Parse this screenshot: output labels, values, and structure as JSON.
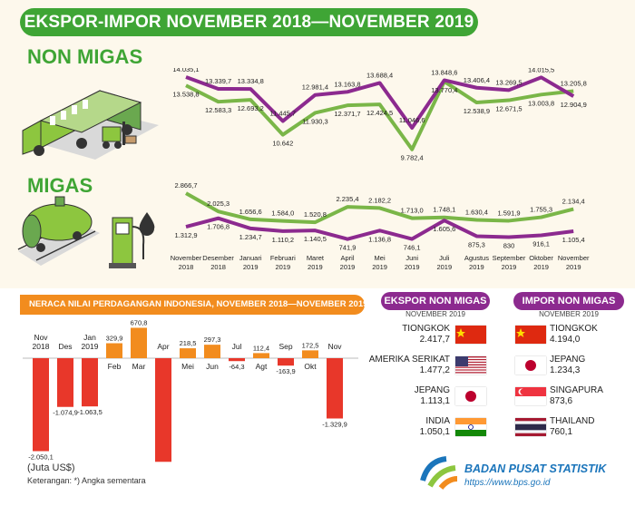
{
  "title": "EKSPOR-IMPOR NOVEMBER 2018—NOVEMBER 2019",
  "sections": {
    "non_migas": "NON MIGAS",
    "migas": "MIGAS"
  },
  "colors": {
    "ekspor": "#7ab648",
    "impor": "#8c2a8f",
    "neraca_pos": "#f28c1e",
    "neraca_neg": "#e8372a",
    "title_green": "#3fa535"
  },
  "icons": [
    "truck-icon",
    "forklift-icon",
    "tank-wagon-icon",
    "fuel-pump-icon",
    "oil-drop-icon",
    "bps-logo-icon"
  ],
  "neraca_title": "NERACA NILAI PERDAGANGAN INDONESIA, NOVEMBER 2018—NOVEMBER 2019",
  "unit_note": "(Juta US$)",
  "footnote": "Keterangan: *) Angka sementara",
  "ekspor_top": {
    "title": "EKSPOR NON MIGAS",
    "period": "NOVEMBER 2019",
    "items": [
      {
        "country": "TIONGKOK",
        "value": "2.417,7",
        "flag": "china"
      },
      {
        "country": "AMERIKA SERIKAT",
        "value": "1.477,2",
        "flag": "usa"
      },
      {
        "country": "JEPANG",
        "value": "1.113,1",
        "flag": "japan"
      },
      {
        "country": "INDIA",
        "value": "1.050,1",
        "flag": "india"
      }
    ]
  },
  "impor_top": {
    "title": "IMPOR NON MIGAS",
    "period": "NOVEMBER 2019",
    "items": [
      {
        "country": "TIONGKOK",
        "value": "4.194,0",
        "flag": "china"
      },
      {
        "country": "JEPANG",
        "value": "1.234,3",
        "flag": "japan"
      },
      {
        "country": "SINGAPURA",
        "value": "873,6",
        "flag": "singapore"
      },
      {
        "country": "THAILAND",
        "value": "760,1",
        "flag": "thailand"
      }
    ]
  },
  "bps": {
    "name": "BADAN PUSAT STATISTIK",
    "url": "https://www.bps.go.id"
  },
  "chart_data": [
    {
      "type": "line",
      "title": "NON MIGAS",
      "x": [
        [
          "November",
          "2018"
        ],
        [
          "Desember",
          "2018"
        ],
        [
          "Januari",
          "2019"
        ],
        [
          "Februari",
          "2019"
        ],
        [
          "Maret",
          "2019"
        ],
        [
          "April",
          "2019"
        ],
        [
          "Mei",
          "2019"
        ],
        [
          "Juni",
          "2019"
        ],
        [
          "Juli",
          "2019"
        ],
        [
          "Agustus",
          "2019"
        ],
        [
          "September",
          "2019"
        ],
        [
          "Oktober",
          "2019"
        ],
        [
          "November",
          "2019"
        ]
      ],
      "series": [
        {
          "color": "#7ab648",
          "values": [
            13538.8,
            12583.3,
            12693.2,
            10642,
            11930.3,
            12371.7,
            12424.5,
            9782.4,
            13770.4,
            12538.9,
            12671.5,
            13003.8,
            13205.8
          ],
          "labels": [
            "13.538,8",
            "12.583,3",
            "12.693,2",
            "10.642",
            "11.930,3",
            "12.371,7",
            "12.424,5",
            "9.782,4",
            "13.770,4",
            "12.538,9",
            "12.671,5",
            "13.003,8",
            "13.205,8"
          ]
        },
        {
          "color": "#8c2a8f",
          "values": [
            14035.1,
            13339.7,
            13334.8,
            11445.7,
            12981.4,
            13163.8,
            13688.4,
            11046.6,
            13848.6,
            13406.4,
            13269.5,
            14015.5,
            12904.9
          ],
          "labels": [
            "14.035,1",
            "13.339,7",
            "13.334,8",
            "11.445,7",
            "12.981,4",
            "13.163,8",
            "13.688,4",
            "11.046,6",
            "13.848,6",
            "13.406,4",
            "13.269,5",
            "14.015,5",
            "12.904,9"
          ]
        }
      ]
    },
    {
      "type": "line",
      "title": "MIGAS",
      "x": [
        [
          "November",
          "2018"
        ],
        [
          "Desember",
          "2018"
        ],
        [
          "Januari",
          "2019"
        ],
        [
          "Februari",
          "2019"
        ],
        [
          "Maret",
          "2019"
        ],
        [
          "April",
          "2019"
        ],
        [
          "Mei",
          "2019"
        ],
        [
          "Juni",
          "2019"
        ],
        [
          "Juli",
          "2019"
        ],
        [
          "Agustus",
          "2019"
        ],
        [
          "September",
          "2019"
        ],
        [
          "Oktober",
          "2019"
        ],
        [
          "November",
          "2019"
        ]
      ],
      "series": [
        {
          "color": "#7ab648",
          "values": [
            2866.7,
            2025.3,
            1656.6,
            1584.0,
            1520.8,
            2235.4,
            2182.2,
            1713.0,
            1748.1,
            1630.4,
            1591.9,
            1755.3,
            2134.4
          ],
          "labels": [
            "2.866,7",
            "2.025,3",
            "1.656,6",
            "1.584,0",
            "1.520,8",
            "2.235,4",
            "2.182,2",
            "1.713,0",
            "1.748,1",
            "1.630,4",
            "1.591,9",
            "1.755,3",
            "2.134,4"
          ]
        },
        {
          "color": "#8c2a8f",
          "values": [
            1312.9,
            1706.8,
            1234.7,
            1110.2,
            1140.5,
            741.9,
            1136.8,
            746.1,
            1605.6,
            875.3,
            830,
            916.1,
            1105.4
          ],
          "labels": [
            "1.312,9",
            "1.706,8",
            "1.234,7",
            "1.110,2",
            "1.140,5",
            "741,9",
            "1.136,8",
            "746,1",
            "1.605,6",
            "875,3",
            "830",
            "916,1",
            "1.105,4"
          ]
        }
      ]
    },
    {
      "type": "bar",
      "title": "NERACA NILAI PERDAGANGAN INDONESIA, NOVEMBER 2018—NOVEMBER 2019",
      "ylabel": "(Juta US$)",
      "categories": [
        [
          "Nov",
          "2018"
        ],
        [
          "Des"
        ],
        [
          "Jan",
          "2019"
        ],
        [
          "Feb"
        ],
        [
          "Mar"
        ],
        [
          "Apr"
        ],
        [
          "Mei"
        ],
        [
          "Jun"
        ],
        [
          "Jul"
        ],
        [
          "Agt"
        ],
        [
          "Sep"
        ],
        [
          "Okt"
        ],
        [
          "Nov"
        ]
      ],
      "values": [
        -2050.1,
        -1074.9,
        -1063.5,
        329.9,
        670.8,
        -2285.6,
        218.5,
        297.3,
        -64.3,
        112.4,
        -163.9,
        172.5,
        -1329.9
      ],
      "labels": [
        "-2.050,1",
        "-1.074,9",
        "-1.063,5",
        "329,9",
        "670,8",
        "-2.285,6",
        "218,5",
        "297,3",
        "-64,3",
        "112,4",
        "-163,9",
        "172,5",
        "-1.329,9"
      ]
    }
  ]
}
